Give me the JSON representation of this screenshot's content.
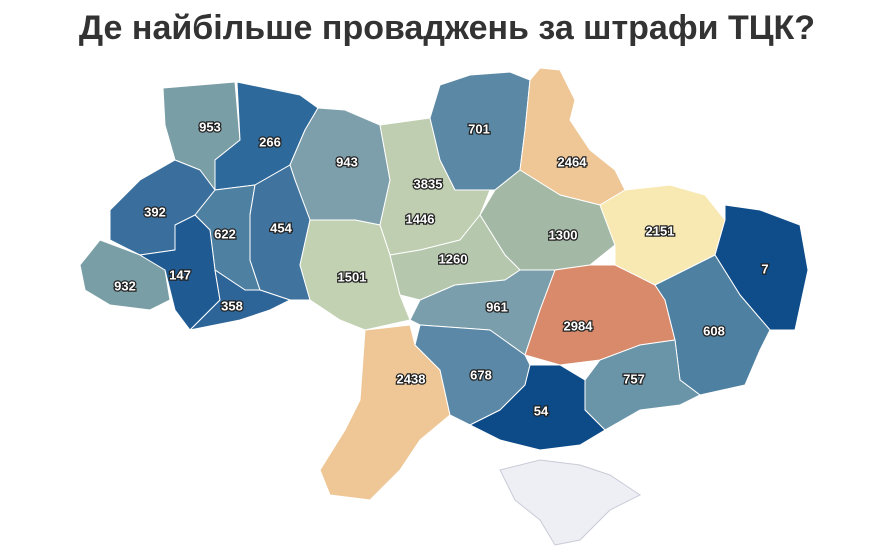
{
  "title": "Де найбільше проваджень за штрафи ТЦК?",
  "regions": [
    {
      "value": 953,
      "color": "#7a9ea6"
    },
    {
      "value": 266,
      "color": "#2d6a9b"
    },
    {
      "value": 943,
      "color": "#7d9fab"
    },
    {
      "value": 3835,
      "color": "#c0504d"
    },
    {
      "value": 1446,
      "color": "#bfcdb0"
    },
    {
      "value": 701,
      "color": "#5b89a5"
    },
    {
      "value": 2464,
      "color": "#efc796"
    },
    {
      "value": 392,
      "color": "#3a6f9d"
    },
    {
      "value": 622,
      "color": "#4e80a1"
    },
    {
      "value": 454,
      "color": "#40749f"
    },
    {
      "value": 1300,
      "color": "#a3b9a6"
    },
    {
      "value": 2151,
      "color": "#f8e8b2"
    },
    {
      "value": 7,
      "color": "#0f4d8a"
    },
    {
      "value": 932,
      "color": "#7a9ea6"
    },
    {
      "value": 147,
      "color": "#1f5a92"
    },
    {
      "value": 358,
      "color": "#2d6598"
    },
    {
      "value": 1501,
      "color": "#c2d1b2"
    },
    {
      "value": 1260,
      "color": "#b5c7ad"
    },
    {
      "value": 961,
      "color": "#7a9eab"
    },
    {
      "value": 2984,
      "color": "#d98a6a"
    },
    {
      "value": 608,
      "color": "#4e80a1"
    },
    {
      "value": 2438,
      "color": "#efc796"
    },
    {
      "value": 678,
      "color": "#5a88a6"
    },
    {
      "value": 757,
      "color": "#6a94a8"
    },
    {
      "value": 54,
      "color": "#0d4b88"
    }
  ]
}
